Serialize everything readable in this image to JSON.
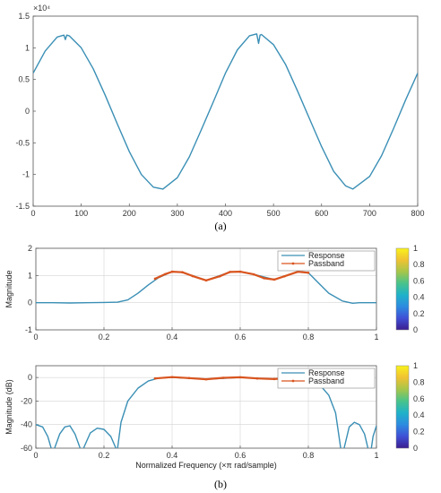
{
  "colors": {
    "response": "#3a8fb5",
    "passband": "#d9541e",
    "colorbar": [
      "#3b1d8f",
      "#3f4fd6",
      "#2c8be0",
      "#1fb2c9",
      "#49c38a",
      "#a6c64a",
      "#f0c232",
      "#f9f21c"
    ]
  },
  "captions": {
    "a": "(a)",
    "b": "(b)"
  },
  "chart_data": [
    {
      "id": "a",
      "type": "line",
      "title": "",
      "xlabel": "",
      "ylabel": "",
      "y_exponent": "×10⁴",
      "xlim": [
        0,
        800
      ],
      "ylim": [
        -1.5,
        1.5
      ],
      "xticks": [
        0,
        100,
        200,
        300,
        400,
        500,
        600,
        700,
        800
      ],
      "yticks": [
        1.5,
        1,
        0.5,
        0,
        -0.5,
        -1,
        -1.5
      ],
      "xtick_labels": [
        "0",
        "100",
        "200",
        "300",
        "400",
        "500",
        "600",
        "700",
        "800"
      ],
      "ytick_labels": [
        "1.5",
        "1",
        "0.5",
        "0",
        "-0.5",
        "-1",
        "-1.5"
      ],
      "grid": false,
      "series": [
        {
          "x": [
            0,
            25,
            50,
            64,
            67,
            70,
            75,
            100,
            125,
            150,
            175,
            200,
            225,
            250,
            270,
            300,
            325,
            350,
            375,
            400,
            425,
            450,
            465,
            469,
            472,
            475,
            500,
            525,
            550,
            575,
            600,
            625,
            650,
            665,
            700,
            725,
            750,
            775,
            800
          ],
          "y": [
            0.6,
            0.95,
            1.17,
            1.2,
            1.13,
            1.2,
            1.19,
            1.0,
            0.67,
            0.25,
            -0.2,
            -0.64,
            -1.0,
            -1.2,
            -1.23,
            -1.05,
            -0.72,
            -0.29,
            0.15,
            0.6,
            0.97,
            1.19,
            1.22,
            1.07,
            1.2,
            1.21,
            1.05,
            0.74,
            0.32,
            -0.12,
            -0.56,
            -0.95,
            -1.18,
            -1.23,
            -1.03,
            -0.7,
            -0.27,
            0.18,
            0.6
          ]
        }
      ]
    },
    {
      "id": "b1",
      "type": "line",
      "xlabel": "",
      "ylabel": "Magnitude",
      "xlim": [
        0,
        1
      ],
      "ylim": [
        -1,
        2
      ],
      "xticks": [
        0,
        0.2,
        0.4,
        0.6,
        0.8,
        1
      ],
      "yticks": [
        2,
        1,
        0,
        -1
      ],
      "xtick_labels": [
        "0",
        "0.2",
        "0.4",
        "0.6",
        "0.8",
        "1"
      ],
      "ytick_labels": [
        "2",
        "1",
        "0",
        "-1"
      ],
      "grid": true,
      "legend": {
        "position": "top-right",
        "entries": [
          "Response",
          "Passband"
        ]
      },
      "colorbar": {
        "min": 0,
        "max": 1,
        "tick_labels": [
          "1",
          "0.8",
          "0.6",
          "0.4",
          "0.2",
          "0"
        ]
      },
      "series": [
        {
          "name": "Response",
          "x": [
            0,
            0.05,
            0.1,
            0.15,
            0.2,
            0.24,
            0.27,
            0.3,
            0.33,
            0.36,
            0.4,
            0.43,
            0.5,
            0.57,
            0.6,
            0.64,
            0.7,
            0.77,
            0.8,
            0.83,
            0.86,
            0.9,
            0.93,
            0.95,
            1
          ],
          "y": [
            0,
            0,
            -0.01,
            0,
            0.01,
            0.02,
            0.1,
            0.35,
            0.65,
            0.92,
            1.14,
            1.12,
            0.82,
            1.13,
            1.14,
            1.04,
            0.85,
            1.14,
            1.1,
            0.72,
            0.35,
            0.06,
            -0.02,
            0,
            0
          ]
        },
        {
          "name": "Passband",
          "x": [
            0.35,
            0.38,
            0.4,
            0.43,
            0.46,
            0.5,
            0.54,
            0.57,
            0.6,
            0.64,
            0.67,
            0.7,
            0.73,
            0.77,
            0.8
          ],
          "y": [
            0.88,
            1.05,
            1.14,
            1.12,
            0.98,
            0.82,
            0.97,
            1.13,
            1.14,
            1.04,
            0.9,
            0.85,
            0.97,
            1.14,
            1.1
          ]
        }
      ]
    },
    {
      "id": "b2",
      "type": "line",
      "xlabel": "Normalized  Frequency  (×π  rad/sample)",
      "ylabel": "Magnitude (dB)",
      "xlim": [
        0,
        1
      ],
      "ylim": [
        -60,
        10
      ],
      "xticks": [
        0,
        0.2,
        0.4,
        0.6,
        0.8,
        1
      ],
      "yticks": [
        0,
        -20,
        -40,
        -60
      ],
      "xtick_labels": [
        "0",
        "0.2",
        "0.4",
        "0.6",
        "0.8",
        "1"
      ],
      "ytick_labels": [
        "0",
        "-20",
        "-40",
        "-60"
      ],
      "grid": true,
      "legend": {
        "position": "top-right",
        "entries": [
          "Response",
          "Passband"
        ]
      },
      "colorbar": {
        "min": 0,
        "max": 1,
        "tick_labels": [
          "1",
          "0.8",
          "0.6",
          "0.4",
          "0.2",
          "0"
        ]
      },
      "series": [
        {
          "name": "Response",
          "segments": [
            {
              "x": [
                0,
                0.02,
                0.035,
                0.045
              ],
              "y": [
                -40,
                -42,
                -50,
                -60
              ]
            },
            {
              "x": [
                0.055,
                0.07,
                0.085,
                0.1,
                0.115,
                0.13
              ],
              "y": [
                -60,
                -48,
                -42,
                -41,
                -48,
                -60
              ]
            },
            {
              "x": [
                0.14,
                0.16,
                0.18,
                0.2,
                0.22,
                0.235
              ],
              "y": [
                -60,
                -47,
                -43,
                -44,
                -50,
                -60
              ]
            },
            {
              "x": [
                0.24,
                0.25,
                0.27,
                0.3,
                0.33,
                0.36,
                0.4,
                0.5,
                0.6,
                0.7,
                0.77,
                0.8,
                0.83,
                0.86,
                0.88,
                0.895
              ],
              "y": [
                -60,
                -38,
                -20,
                -9,
                -3,
                -0.5,
                0,
                -1.5,
                0,
                -1.3,
                0,
                -0.4,
                -5,
                -15,
                -30,
                -60
              ]
            },
            {
              "x": [
                0.905,
                0.92,
                0.935,
                0.95,
                0.965,
                0.975
              ],
              "y": [
                -60,
                -42,
                -38,
                -40,
                -48,
                -60
              ]
            },
            {
              "x": [
                0.985,
                0.99,
                1
              ],
              "y": [
                -60,
                -50,
                -41
              ]
            }
          ]
        },
        {
          "name": "Passband",
          "x": [
            0.35,
            0.4,
            0.45,
            0.5,
            0.55,
            0.6,
            0.65,
            0.7,
            0.75,
            0.8
          ],
          "y": [
            -0.8,
            0.3,
            -0.5,
            -1.5,
            -0.3,
            0.2,
            -0.8,
            -1.3,
            -0.2,
            -0.4
          ]
        }
      ]
    }
  ]
}
